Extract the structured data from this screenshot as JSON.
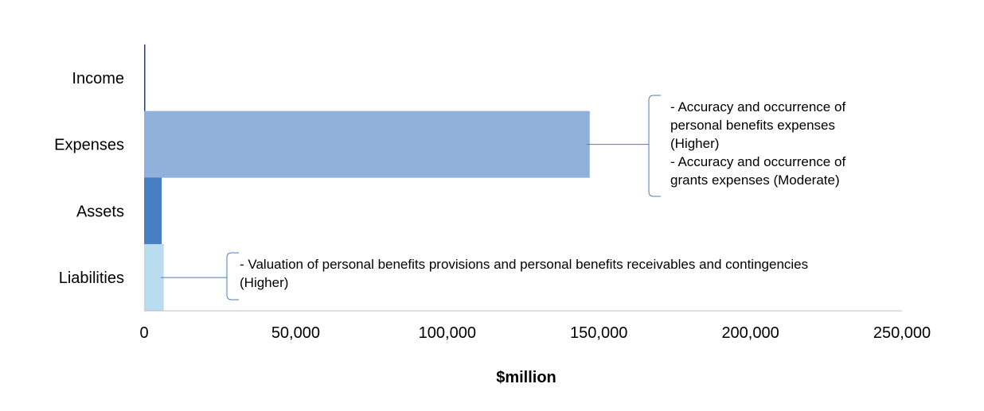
{
  "chart_data": {
    "type": "bar",
    "orientation": "horizontal",
    "categories": [
      "Income",
      "Expenses",
      "Assets",
      "Liabilities"
    ],
    "values": [
      200,
      147000,
      5800,
      6500
    ],
    "colors": [
      "#1f3d8a",
      "#8fb1da",
      "#4a7ec2",
      "#b9dcef"
    ],
    "xlabel": "$million",
    "xlim": [
      0,
      250000
    ],
    "xticks": [
      0,
      50000,
      100000,
      150000,
      200000,
      250000
    ],
    "xtick_labels": [
      "0",
      "50,000",
      "100,000",
      "150,000",
      "200,000",
      "250,000"
    ],
    "grid": false,
    "legend": "none",
    "annotations": [
      {
        "category": "Expenses",
        "lines": [
          "- Accuracy and occurrence of",
          "personal benefits expenses",
          "(Higher)",
          "- Accuracy and occurrence of",
          "grants expenses (Moderate)"
        ]
      },
      {
        "category": "Liabilities",
        "lines": [
          "- Valuation of personal benefits provisions and personal benefits receivables and contingencies",
          "(Higher)"
        ]
      }
    ]
  },
  "colors": {
    "axis": "#bfbfbf",
    "connector": "#4a7ec2"
  }
}
